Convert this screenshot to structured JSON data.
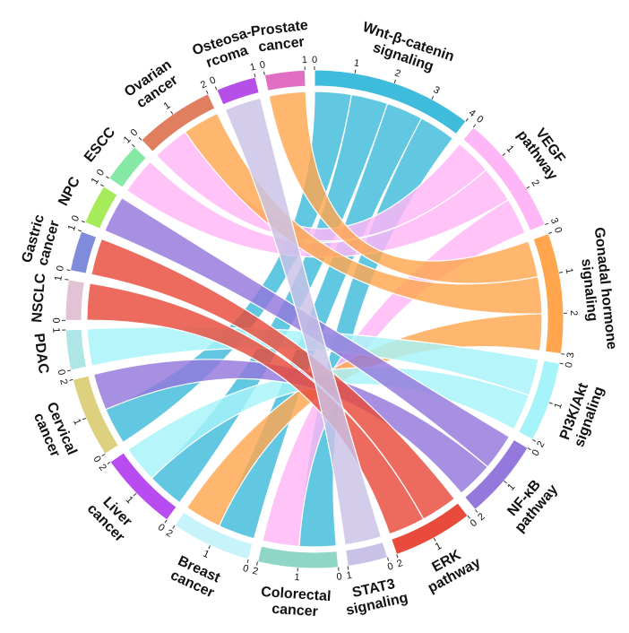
{
  "chart_data": {
    "type": "chord",
    "sectors": [
      {
        "name": "Wnt-β-catenin\nsignaling",
        "color": "#3fbbdb",
        "ticks": [
          0,
          1,
          2,
          3,
          4
        ]
      },
      {
        "name": "VEGF\npathway",
        "color": "#ffb6f6",
        "ticks": [
          0,
          1,
          2,
          3
        ]
      },
      {
        "name": "Gonadal hormone\nsignaling",
        "color": "#ffa64f",
        "ticks": [
          0,
          1,
          2,
          3
        ]
      },
      {
        "name": "PI3K/Akt\nsignaling",
        "color": "#a6f4f9",
        "ticks": [
          0,
          1,
          2
        ]
      },
      {
        "name": "NF-κB\npathway",
        "color": "#9478dc",
        "ticks": [
          0,
          1,
          2
        ]
      },
      {
        "name": "ERK\npathway",
        "color": "#e84a3b",
        "ticks": [
          0,
          1,
          2
        ]
      },
      {
        "name": "STAT3\nsignaling",
        "color": "#c9c2e6",
        "ticks": [
          0,
          1
        ]
      },
      {
        "name": "Colorectal\ncancer",
        "color": "#8fd6c6",
        "ticks": [
          0,
          1,
          2
        ]
      },
      {
        "name": "Breast\ncancer",
        "color": "#c6f4fa",
        "ticks": [
          0,
          1,
          2
        ]
      },
      {
        "name": "Liver\ncancer",
        "color": "#b84cf0",
        "ticks": [
          0,
          1,
          2
        ]
      },
      {
        "name": "Cervical\ncancer",
        "color": "#ddd07e",
        "ticks": [
          0,
          1,
          2
        ]
      },
      {
        "name": "PDAC",
        "color": "#aee6e6",
        "ticks": [
          0,
          1
        ]
      },
      {
        "name": "NSCLC",
        "color": "#e1c3d5",
        "ticks": [
          0,
          1
        ]
      },
      {
        "name": "Gastric\ncancer",
        "color": "#7f8cdc",
        "ticks": [
          0,
          1
        ]
      },
      {
        "name": "NPC",
        "color": "#a6ec5a",
        "ticks": [
          0,
          1
        ]
      },
      {
        "name": "ESCC",
        "color": "#86e8a5",
        "ticks": [
          0,
          1
        ]
      },
      {
        "name": "Ovarian\ncancer",
        "color": "#e07e60",
        "ticks": [
          0,
          1,
          2
        ]
      },
      {
        "name": "Osteosa-\nrcoma",
        "color": "#b64fe8",
        "ticks": [
          0,
          1
        ]
      },
      {
        "name": "Prostate\ncancer",
        "color": "#e06fc4",
        "ticks": [
          0,
          1
        ]
      }
    ],
    "links": [
      {
        "source": "Wnt-β-catenin\nsignaling",
        "target": "Cervical\ncancer",
        "value": 1
      },
      {
        "source": "Wnt-β-catenin\nsignaling",
        "target": "Liver\ncancer",
        "value": 1
      },
      {
        "source": "Wnt-β-catenin\nsignaling",
        "target": "Breast\ncancer",
        "value": 1
      },
      {
        "source": "Wnt-β-catenin\nsignaling",
        "target": "Colorectal\ncancer",
        "value": 1
      },
      {
        "source": "VEGF\npathway",
        "target": "Ovarian\ncancer",
        "value": 1
      },
      {
        "source": "VEGF\npathway",
        "target": "ESCC",
        "value": 1
      },
      {
        "source": "VEGF\npathway",
        "target": "Colorectal\ncancer",
        "value": 1
      },
      {
        "source": "Gonadal hormone\nsignaling",
        "target": "Prostate\ncancer",
        "value": 1
      },
      {
        "source": "Gonadal hormone\nsignaling",
        "target": "Ovarian\ncancer",
        "value": 1
      },
      {
        "source": "Gonadal hormone\nsignaling",
        "target": "Breast\ncancer",
        "value": 1
      },
      {
        "source": "PI3K/Akt\nsignaling",
        "target": "PDAC",
        "value": 1
      },
      {
        "source": "PI3K/Akt\nsignaling",
        "target": "Liver\ncancer",
        "value": 1
      },
      {
        "source": "NF-κB\npathway",
        "target": "NPC",
        "value": 1
      },
      {
        "source": "NF-κB\npathway",
        "target": "Cervical\ncancer",
        "value": 1
      },
      {
        "source": "ERK\npathway",
        "target": "Gastric\ncancer",
        "value": 1
      },
      {
        "source": "ERK\npathway",
        "target": "NSCLC",
        "value": 1
      },
      {
        "source": "STAT3\nsignaling",
        "target": "Osteosa-\nrcoma",
        "value": 1
      }
    ]
  }
}
